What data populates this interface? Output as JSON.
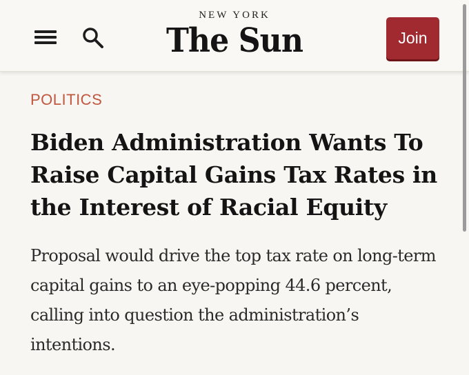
{
  "header": {
    "menu_icon": "hamburger-menu-icon",
    "search_icon": "magnifier-search-icon",
    "masthead_sub": "NEW YORK",
    "masthead_title": "The Sun",
    "join_label": "Join",
    "colors": {
      "join_background": "#a02a30",
      "header_background": "#faf8f4"
    }
  },
  "article": {
    "category": "POLITICS",
    "headline": "Biden Administration Wants To Raise Capital Gains Tax Rates in the Interest of Racial Equity",
    "dek": "Proposal would drive the top tax rate on long-term capital gains to an eye-popping 44.6 percent, calling into question the administration’s intentions.",
    "colors": {
      "category": "#c0573f",
      "page_background": "#f8f6f2"
    }
  }
}
